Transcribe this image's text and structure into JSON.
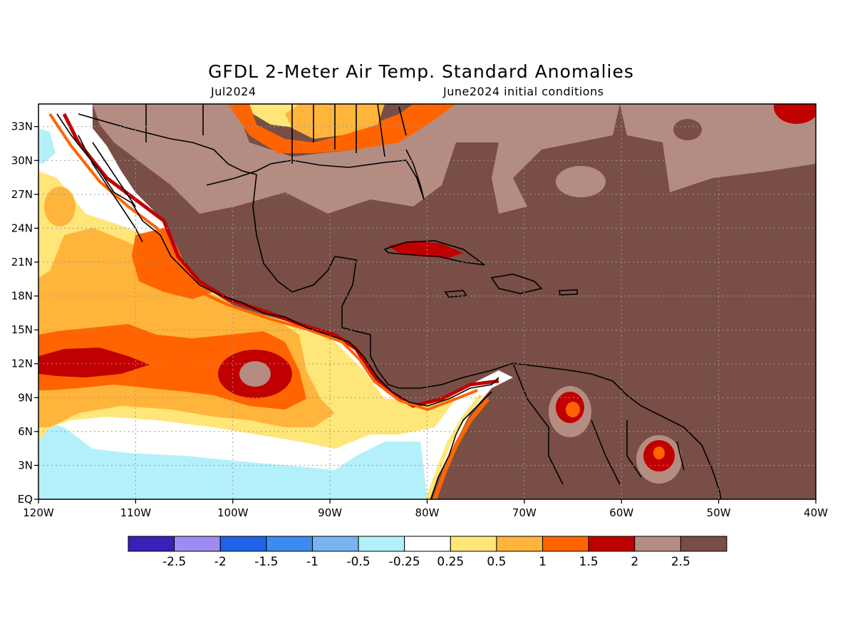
{
  "title": "GFDL 2-Meter Air Temp. Standard Anomalies",
  "subtitle_left": "Jul2024",
  "subtitle_right": "June2024 initial conditions",
  "map": {
    "lon_range": [
      -120,
      -40
    ],
    "lat_range": [
      0,
      35
    ],
    "lon_ticks": [
      {
        "value": -120,
        "label": "120W"
      },
      {
        "value": -110,
        "label": "110W"
      },
      {
        "value": -100,
        "label": "100W"
      },
      {
        "value": -90,
        "label": "90W"
      },
      {
        "value": -80,
        "label": "80W"
      },
      {
        "value": -70,
        "label": "70W"
      },
      {
        "value": -60,
        "label": "60W"
      },
      {
        "value": -50,
        "label": "50W"
      },
      {
        "value": -40,
        "label": "40W"
      }
    ],
    "lat_ticks": [
      {
        "value": 0,
        "label": "EQ"
      },
      {
        "value": 3,
        "label": "3N"
      },
      {
        "value": 6,
        "label": "6N"
      },
      {
        "value": 9,
        "label": "9N"
      },
      {
        "value": 12,
        "label": "12N"
      },
      {
        "value": 15,
        "label": "15N"
      },
      {
        "value": 18,
        "label": "18N"
      },
      {
        "value": 21,
        "label": "21N"
      },
      {
        "value": 24,
        "label": "24N"
      },
      {
        "value": 27,
        "label": "27N"
      },
      {
        "value": 30,
        "label": "30N"
      },
      {
        "value": 33,
        "label": "33N"
      }
    ],
    "gridlines": true
  },
  "colorbar": {
    "colors": [
      "#3a1fb8",
      "#a08cf0",
      "#1f64e8",
      "#3a8cf0",
      "#78b4f0",
      "#b4f0fa",
      "#ffffff",
      "#ffe678",
      "#ffb43c",
      "#ff6400",
      "#c00000",
      "#b48c82",
      "#784e46"
    ],
    "labels": [
      "-2.5",
      "-2",
      "-1.5",
      "-1",
      "-0.5",
      "-0.25",
      "0.25",
      "0.5",
      "1",
      "1.5",
      "2",
      "2.5"
    ]
  }
}
